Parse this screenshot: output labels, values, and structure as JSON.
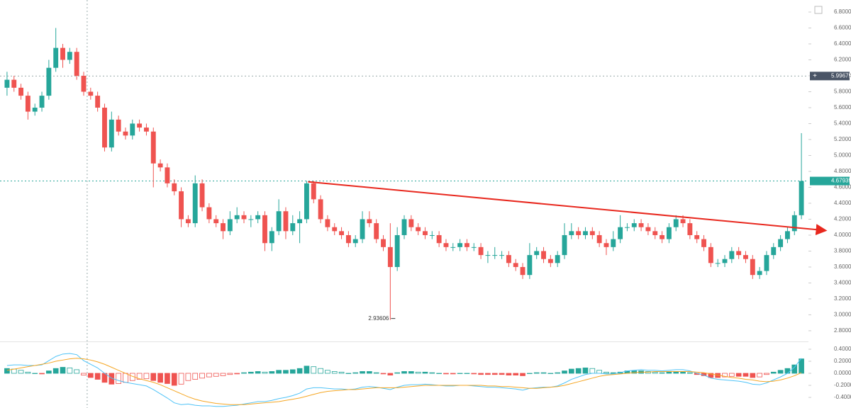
{
  "chart_data": [
    {
      "type": "candlestick",
      "up_color": "#26a69a",
      "down_color": "#ef5350",
      "ylim": [
        2.684,
        6.951
      ],
      "yticks": [
        {
          "value": 2.8,
          "label": "2.80000"
        },
        {
          "value": 3.0,
          "label": "3.00000"
        },
        {
          "value": 3.2,
          "label": "3.20000"
        },
        {
          "value": 3.4,
          "label": "3.40000"
        },
        {
          "value": 3.6,
          "label": "3.60000"
        },
        {
          "value": 3.8,
          "label": "3.80000"
        },
        {
          "value": 4.0,
          "label": "4.00000"
        },
        {
          "value": 4.2,
          "label": "4.20000"
        },
        {
          "value": 4.4,
          "label": "4.40000"
        },
        {
          "value": 4.6,
          "label": "4.60000"
        },
        {
          "value": 4.8,
          "label": "4.80000"
        },
        {
          "value": 5.0,
          "label": "5.00000"
        },
        {
          "value": 5.2,
          "label": "5.20000"
        },
        {
          "value": 5.4,
          "label": "5.40000"
        },
        {
          "value": 5.6,
          "label": "5.60000"
        },
        {
          "value": 5.8,
          "label": "5.80000"
        },
        {
          "value": 6.0,
          "label": "6.00000"
        },
        {
          "value": 6.2,
          "label": "6.20000"
        },
        {
          "value": 6.4,
          "label": "6.40000"
        },
        {
          "value": 6.6,
          "label": "6.60000"
        },
        {
          "value": 6.8,
          "label": "6.80000"
        }
      ],
      "open": [
        5.85,
        5.95,
        5.85,
        5.75,
        5.55,
        5.6,
        5.75,
        6.1,
        6.35,
        6.2,
        6.3,
        6.0,
        5.8,
        5.75,
        5.6,
        5.1,
        5.45,
        5.3,
        5.25,
        5.4,
        5.35,
        5.3,
        4.9,
        4.85,
        4.65,
        4.55,
        4.2,
        4.15,
        4.65,
        4.35,
        4.2,
        4.15,
        4.05,
        4.2,
        4.25,
        4.2,
        4.2,
        4.25,
        3.9,
        4.05,
        4.3,
        4.05,
        4.15,
        4.2,
        4.65,
        4.45,
        4.2,
        4.1,
        4.05,
        4.0,
        3.9,
        3.95,
        4.2,
        4.15,
        3.95,
        3.85,
        3.6,
        4.0,
        4.2,
        4.1,
        4.05,
        4.0,
        4.0,
        3.9,
        3.85,
        3.85,
        3.9,
        3.85,
        3.85,
        3.75,
        3.75,
        3.75,
        3.75,
        3.65,
        3.6,
        3.5,
        3.75,
        3.8,
        3.7,
        3.65,
        3.75,
        4.0,
        4.05,
        4.0,
        4.05,
        4.0,
        3.9,
        3.85,
        3.95,
        4.1,
        4.1,
        4.15,
        4.1,
        4.05,
        4.0,
        3.95,
        4.1,
        4.2,
        4.15,
        4.0,
        3.95,
        3.85,
        3.65,
        3.65,
        3.7,
        3.8,
        3.75,
        3.7,
        3.5,
        3.55,
        3.75,
        3.85,
        3.95,
        4.05,
        4.25
      ],
      "high": [
        6.05,
        6.0,
        5.9,
        5.8,
        5.65,
        5.8,
        6.2,
        6.6,
        6.4,
        6.35,
        6.35,
        6.05,
        5.85,
        5.8,
        5.65,
        5.55,
        5.5,
        5.35,
        5.45,
        5.45,
        5.4,
        5.35,
        4.95,
        4.9,
        4.7,
        4.6,
        4.25,
        4.75,
        4.7,
        4.4,
        4.25,
        4.2,
        4.3,
        4.35,
        4.3,
        4.25,
        4.3,
        4.3,
        4.1,
        4.45,
        4.35,
        4.25,
        4.3,
        4.68,
        4.68,
        4.5,
        4.25,
        4.15,
        4.1,
        4.05,
        4.0,
        4.3,
        4.3,
        4.2,
        4.0,
        4.15,
        4.1,
        4.25,
        4.25,
        4.15,
        4.1,
        4.05,
        4.05,
        3.95,
        3.9,
        3.95,
        3.95,
        3.9,
        3.9,
        3.8,
        3.85,
        3.8,
        3.8,
        3.7,
        3.65,
        3.9,
        3.85,
        3.85,
        3.75,
        3.8,
        4.15,
        4.15,
        4.1,
        4.1,
        4.1,
        4.05,
        3.95,
        4.05,
        4.25,
        4.15,
        4.2,
        4.2,
        4.15,
        4.1,
        4.05,
        4.15,
        4.25,
        4.25,
        4.2,
        4.05,
        4.0,
        3.9,
        3.7,
        3.75,
        3.85,
        3.85,
        3.8,
        3.75,
        3.6,
        3.8,
        3.9,
        4.0,
        4.1,
        4.3,
        5.28
      ],
      "low": [
        5.75,
        5.8,
        5.7,
        5.45,
        5.5,
        5.55,
        5.7,
        6.05,
        6.1,
        6.15,
        5.95,
        5.75,
        5.7,
        5.55,
        5.05,
        5.05,
        5.25,
        5.2,
        5.2,
        5.3,
        5.25,
        4.6,
        4.8,
        4.6,
        4.5,
        4.1,
        4.1,
        4.1,
        4.3,
        4.15,
        4.1,
        3.95,
        4.0,
        4.15,
        4.15,
        4.1,
        4.15,
        3.8,
        3.8,
        4.0,
        3.95,
        4.0,
        3.9,
        4.15,
        4.4,
        4.15,
        4.05,
        4.0,
        3.95,
        3.85,
        3.85,
        3.9,
        4.1,
        3.9,
        3.8,
        2.93606,
        3.55,
        3.95,
        4.05,
        4.0,
        3.95,
        3.95,
        3.85,
        3.8,
        3.8,
        3.8,
        3.8,
        3.8,
        3.7,
        3.65,
        3.7,
        3.7,
        3.6,
        3.55,
        3.45,
        3.45,
        3.7,
        3.65,
        3.6,
        3.6,
        3.7,
        3.95,
        3.95,
        3.95,
        3.95,
        3.85,
        3.75,
        3.8,
        3.9,
        4.05,
        4.05,
        4.05,
        4.0,
        3.95,
        3.9,
        3.9,
        4.05,
        4.1,
        3.95,
        3.9,
        3.8,
        3.6,
        3.6,
        3.6,
        3.65,
        3.7,
        3.65,
        3.45,
        3.45,
        3.5,
        3.7,
        3.8,
        3.9,
        4.0,
        4.2
      ],
      "close": [
        5.95,
        5.85,
        5.75,
        5.55,
        5.6,
        5.75,
        6.1,
        6.35,
        6.2,
        6.3,
        6.0,
        5.8,
        5.75,
        5.6,
        5.1,
        5.45,
        5.3,
        5.25,
        5.4,
        5.35,
        5.3,
        4.9,
        4.85,
        4.65,
        4.55,
        4.2,
        4.15,
        4.65,
        4.35,
        4.2,
        4.15,
        4.05,
        4.2,
        4.25,
        4.2,
        4.2,
        4.25,
        3.9,
        4.05,
        4.3,
        4.05,
        4.15,
        4.2,
        4.65,
        4.45,
        4.2,
        4.1,
        4.05,
        4.0,
        3.9,
        3.95,
        4.2,
        4.15,
        3.95,
        3.85,
        3.6,
        4.0,
        4.2,
        4.1,
        4.05,
        4.0,
        4.0,
        3.9,
        3.85,
        3.85,
        3.9,
        3.85,
        3.85,
        3.75,
        3.75,
        3.75,
        3.75,
        3.65,
        3.6,
        3.5,
        3.75,
        3.8,
        3.7,
        3.65,
        3.75,
        4.0,
        4.05,
        4.0,
        4.05,
        4.0,
        3.9,
        3.85,
        3.95,
        4.1,
        4.1,
        4.15,
        4.1,
        4.05,
        4.0,
        3.95,
        4.1,
        4.2,
        4.15,
        4.0,
        3.95,
        3.85,
        3.65,
        3.65,
        3.7,
        3.8,
        3.75,
        3.7,
        3.5,
        3.55,
        3.75,
        3.85,
        3.95,
        4.05,
        4.25,
        4.67939
      ],
      "crosshair": {
        "x": 11.5,
        "y": 5.99675,
        "color": "#4a5566"
      },
      "trend_line": {
        "x": [
          43.2,
          117.3
        ],
        "y": [
          4.67,
          4.06
        ],
        "color": "#e8281e"
      }
    },
    {
      "type": "macd",
      "ylim": [
        -0.576,
        0.506
      ],
      "yticks": [
        {
          "value": -0.4,
          "label": "-0.40000"
        },
        {
          "value": -0.2,
          "label": "-0.20000"
        },
        {
          "value": 0,
          "label": "0.00000"
        },
        {
          "value": 0.2,
          "label": "0.20000"
        },
        {
          "value": 0.4,
          "label": "0.40000"
        }
      ],
      "histogram": {
        "up_color": "#26a69a",
        "down_color": "#ef5350",
        "values": [
          0.08,
          0.07,
          0.05,
          0.02,
          0.0,
          -0.01,
          0.04,
          0.08,
          0.1,
          0.09,
          0.06,
          -0.03,
          -0.07,
          -0.1,
          -0.15,
          -0.18,
          -0.17,
          -0.15,
          -0.12,
          -0.1,
          -0.09,
          -0.12,
          -0.15,
          -0.17,
          -0.2,
          -0.18,
          -0.12,
          -0.1,
          -0.08,
          -0.06,
          -0.05,
          -0.04,
          -0.02,
          -0.01,
          0.01,
          0.02,
          0.03,
          0.02,
          0.03,
          0.05,
          0.05,
          0.06,
          0.08,
          0.12,
          0.11,
          0.08,
          0.05,
          0.03,
          0.02,
          0.0,
          0.01,
          0.03,
          0.03,
          0.01,
          -0.01,
          -0.03,
          0.01,
          0.03,
          0.03,
          0.02,
          0.02,
          0.01,
          0.0,
          -0.01,
          -0.01,
          0.0,
          0.0,
          -0.01,
          -0.02,
          -0.02,
          -0.02,
          -0.02,
          -0.03,
          -0.03,
          -0.04,
          0.0,
          0.01,
          0.01,
          0.0,
          0.01,
          0.04,
          0.07,
          0.08,
          0.09,
          0.08,
          0.05,
          0.02,
          0.01,
          0.02,
          0.04,
          0.04,
          0.04,
          0.03,
          0.02,
          0.01,
          0.02,
          0.03,
          0.03,
          0.01,
          -0.02,
          -0.04,
          -0.07,
          -0.07,
          -0.06,
          -0.05,
          -0.05,
          -0.05,
          -0.07,
          -0.06,
          -0.02,
          0.02,
          0.05,
          0.08,
          0.14,
          0.24
        ]
      },
      "series": [
        {
          "color": "#4fc3f7",
          "values": [
            0.13,
            0.14,
            0.14,
            0.13,
            0.13,
            0.14,
            0.21,
            0.28,
            0.32,
            0.33,
            0.31,
            0.21,
            0.15,
            0.09,
            0.0,
            -0.08,
            -0.12,
            -0.15,
            -0.17,
            -0.19,
            -0.21,
            -0.27,
            -0.34,
            -0.41,
            -0.49,
            -0.52,
            -0.51,
            -0.53,
            -0.54,
            -0.54,
            -0.55,
            -0.55,
            -0.54,
            -0.53,
            -0.51,
            -0.49,
            -0.47,
            -0.47,
            -0.45,
            -0.42,
            -0.4,
            -0.37,
            -0.33,
            -0.26,
            -0.24,
            -0.24,
            -0.25,
            -0.26,
            -0.26,
            -0.27,
            -0.26,
            -0.23,
            -0.22,
            -0.23,
            -0.25,
            -0.27,
            -0.23,
            -0.2,
            -0.19,
            -0.19,
            -0.18,
            -0.19,
            -0.2,
            -0.21,
            -0.21,
            -0.2,
            -0.2,
            -0.21,
            -0.22,
            -0.23,
            -0.23,
            -0.24,
            -0.25,
            -0.26,
            -0.28,
            -0.25,
            -0.24,
            -0.23,
            -0.23,
            -0.21,
            -0.16,
            -0.1,
            -0.06,
            -0.02,
            0.0,
            0.0,
            -0.01,
            -0.01,
            0.01,
            0.04,
            0.05,
            0.06,
            0.05,
            0.05,
            0.04,
            0.05,
            0.06,
            0.06,
            0.04,
            0.0,
            -0.03,
            -0.08,
            -0.1,
            -0.11,
            -0.12,
            -0.13,
            -0.15,
            -0.18,
            -0.19,
            -0.16,
            -0.11,
            -0.06,
            0.0,
            0.1,
            0.25
          ]
        },
        {
          "color": "#f5a623",
          "values": [
            0.05,
            0.07,
            0.09,
            0.11,
            0.13,
            0.15,
            0.17,
            0.2,
            0.22,
            0.24,
            0.25,
            0.24,
            0.22,
            0.19,
            0.15,
            0.1,
            0.05,
            0.0,
            -0.05,
            -0.09,
            -0.12,
            -0.15,
            -0.19,
            -0.24,
            -0.29,
            -0.34,
            -0.39,
            -0.43,
            -0.46,
            -0.48,
            -0.5,
            -0.51,
            -0.52,
            -0.52,
            -0.52,
            -0.51,
            -0.5,
            -0.49,
            -0.48,
            -0.47,
            -0.45,
            -0.43,
            -0.41,
            -0.38,
            -0.35,
            -0.32,
            -0.3,
            -0.29,
            -0.28,
            -0.27,
            -0.27,
            -0.26,
            -0.25,
            -0.24,
            -0.24,
            -0.24,
            -0.24,
            -0.23,
            -0.22,
            -0.21,
            -0.2,
            -0.2,
            -0.2,
            -0.2,
            -0.2,
            -0.2,
            -0.2,
            -0.2,
            -0.2,
            -0.21,
            -0.21,
            -0.22,
            -0.22,
            -0.23,
            -0.24,
            -0.25,
            -0.25,
            -0.24,
            -0.23,
            -0.22,
            -0.2,
            -0.17,
            -0.14,
            -0.11,
            -0.08,
            -0.05,
            -0.03,
            -0.02,
            -0.01,
            0.0,
            0.01,
            0.02,
            0.02,
            0.03,
            0.03,
            0.03,
            0.03,
            0.03,
            0.03,
            0.02,
            0.01,
            -0.01,
            -0.03,
            -0.05,
            -0.07,
            -0.08,
            -0.1,
            -0.11,
            -0.13,
            -0.14,
            -0.13,
            -0.11,
            -0.08,
            -0.04,
            0.01
          ]
        }
      ]
    }
  ]
}
